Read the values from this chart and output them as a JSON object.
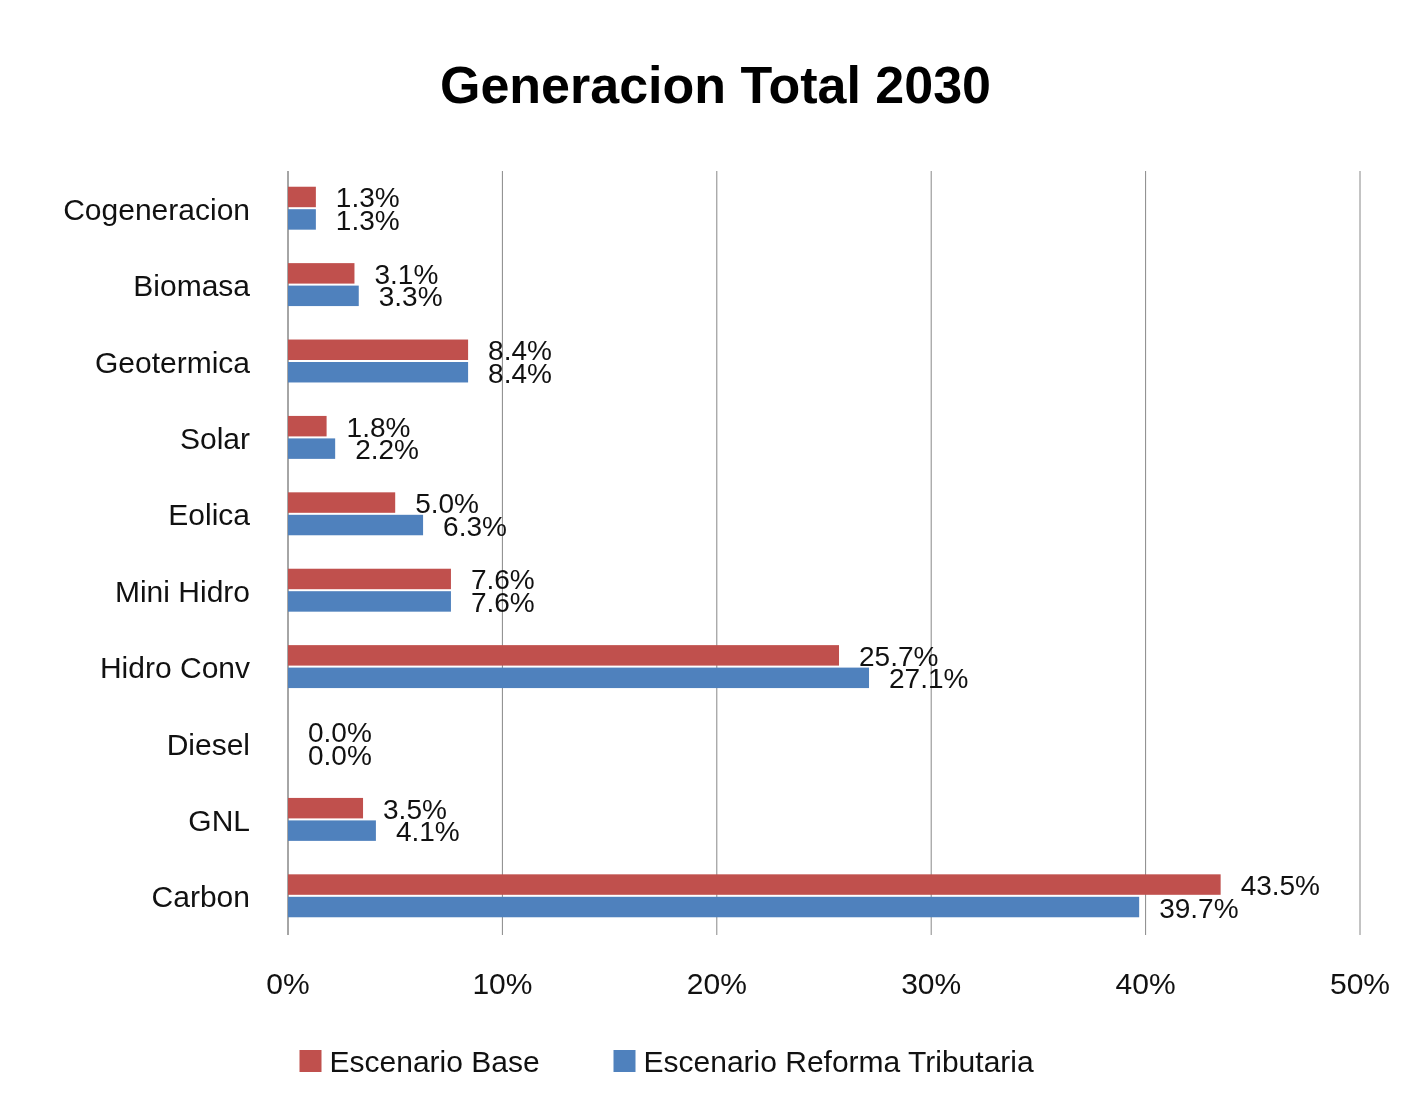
{
  "chart_data": {
    "type": "bar",
    "orientation": "horizontal",
    "title": "Generacion Total 2030",
    "categories": [
      "Cogeneracion",
      "Biomasa",
      "Geotermica",
      "Solar",
      "Eolica",
      "Mini Hidro",
      "Hidro Conv",
      "Diesel",
      "GNL",
      "Carbon"
    ],
    "series": [
      {
        "name": "Escenario Base",
        "color": "#c0504d",
        "values": [
          1.3,
          3.1,
          8.4,
          1.8,
          5.0,
          7.6,
          25.7,
          0.0,
          3.5,
          43.5
        ],
        "value_labels": [
          "1.3%",
          "3.1%",
          "8.4%",
          "1.8%",
          "5.0%",
          "7.6%",
          "25.7%",
          "0.0%",
          "3.5%",
          "43.5%"
        ]
      },
      {
        "name": "Escenario Reforma Tributaria",
        "color": "#4f81bd",
        "values": [
          1.3,
          3.3,
          8.4,
          2.2,
          6.3,
          7.6,
          27.1,
          0.0,
          4.1,
          39.7
        ],
        "value_labels": [
          "1.3%",
          "3.3%",
          "8.4%",
          "2.2%",
          "6.3%",
          "7.6%",
          "27.1%",
          "0.0%",
          "4.1%",
          "39.7%"
        ]
      }
    ],
    "xlim": [
      0,
      50
    ],
    "xticks": [
      {
        "value": 0,
        "label": "0%"
      },
      {
        "value": 10,
        "label": "10%"
      },
      {
        "value": 20,
        "label": "20%"
      },
      {
        "value": 30,
        "label": "30%"
      },
      {
        "value": 40,
        "label": "40%"
      },
      {
        "value": 50,
        "label": "50%"
      }
    ],
    "grid": "x",
    "legend": "bottom"
  }
}
